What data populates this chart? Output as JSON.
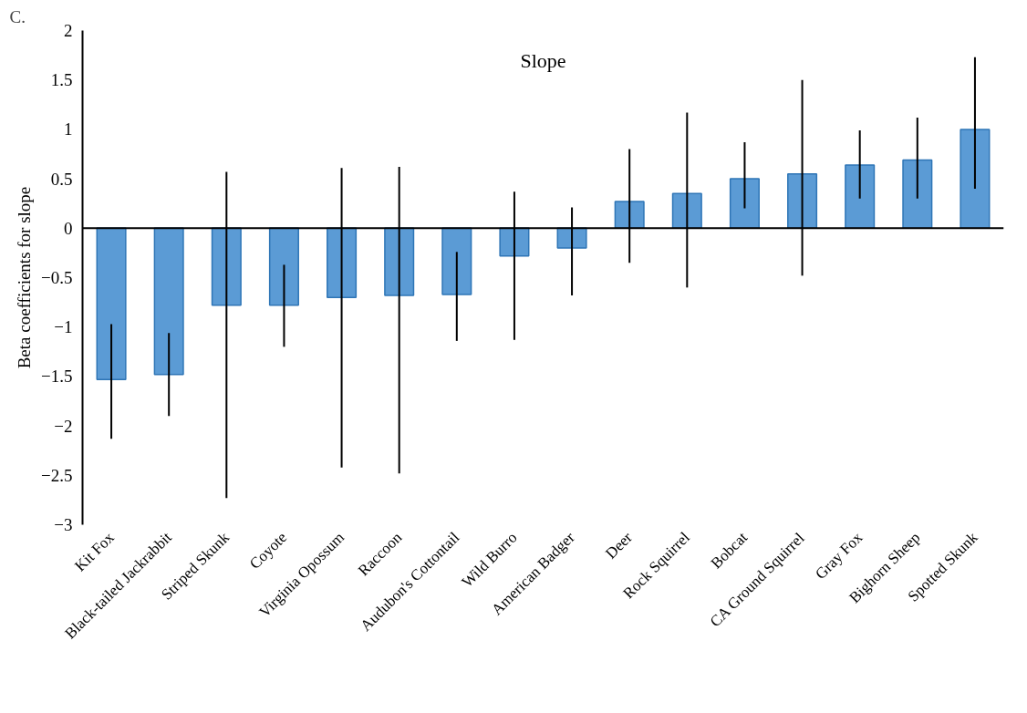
{
  "chart_data": {
    "type": "bar",
    "title": "Slope",
    "ylabel": "Beta coefficients for slope",
    "annotations": [
      "C."
    ],
    "categories": [
      "Kit Fox",
      "Black-tailed Jackrabbit",
      "Striped Skunk",
      "Coyote",
      "Virginia Opossum",
      "Raccoon",
      "Audubon's Cottontail",
      "Wild Burro",
      "American Badger",
      "Deer",
      "Rock Squirrel",
      "Bobcat",
      "CA Ground Squirrel",
      "Gray Fox",
      "Bighorn Sheep",
      "Spotted Skunk"
    ],
    "series": [
      {
        "color": "#5b9bd5",
        "values": [
          -1.53,
          -1.48,
          -0.78,
          -0.78,
          -0.7,
          -0.68,
          -0.67,
          -0.28,
          -0.2,
          0.27,
          0.35,
          0.5,
          0.55,
          0.64,
          0.69,
          1.0
        ],
        "errors": [
          [
            -2.13,
            -0.97
          ],
          [
            -1.9,
            -1.06
          ],
          [
            -2.73,
            0.57
          ],
          [
            -1.2,
            -0.37
          ],
          [
            -2.42,
            0.61
          ],
          [
            -2.48,
            0.62
          ],
          [
            -1.14,
            -0.24
          ],
          [
            -1.13,
            0.37
          ],
          [
            -0.68,
            0.21
          ],
          [
            -0.35,
            0.8
          ],
          [
            -0.6,
            1.17
          ],
          [
            0.2,
            0.87
          ],
          [
            -0.48,
            1.5
          ],
          [
            0.3,
            0.99
          ],
          [
            0.3,
            1.12
          ],
          [
            0.4,
            1.73
          ]
        ]
      }
    ],
    "ylim": [
      -3,
      2
    ],
    "yticks": [
      -3,
      -2.5,
      -2,
      -1.5,
      -1,
      -0.5,
      0,
      0.5,
      1,
      1.5,
      2
    ],
    "ref_lines": [
      {
        "axis": "y",
        "value": 0
      }
    ],
    "grid": false
  }
}
